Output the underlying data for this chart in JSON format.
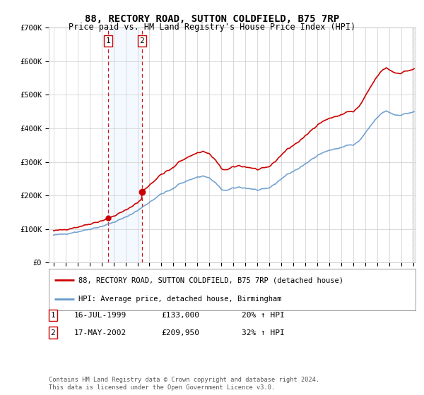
{
  "title": "88, RECTORY ROAD, SUTTON COLDFIELD, B75 7RP",
  "subtitle": "Price paid vs. HM Land Registry's House Price Index (HPI)",
  "legend_line1": "88, RECTORY ROAD, SUTTON COLDFIELD, B75 7RP (detached house)",
  "legend_line2": "HPI: Average price, detached house, Birmingham",
  "transaction1_date": "16-JUL-1999",
  "transaction1_price": "£133,000",
  "transaction1_hpi": "20% ↑ HPI",
  "transaction1_year": 1999.54,
  "transaction1_value": 133000,
  "transaction2_date": "17-MAY-2002",
  "transaction2_price": "£209,950",
  "transaction2_hpi": "32% ↑ HPI",
  "transaction2_year": 2002.37,
  "transaction2_value": 209950,
  "footer": "Contains HM Land Registry data © Crown copyright and database right 2024.\nThis data is licensed under the Open Government Licence v3.0.",
  "hpi_color": "#6699cc",
  "price_color": "#cc0000",
  "background_color": "#ffffff",
  "plot_bg_color": "#ffffff",
  "grid_color": "#cccccc",
  "shade_color": "#ddeeff",
  "ylim": [
    0,
    700000
  ],
  "yticks": [
    0,
    100000,
    200000,
    300000,
    400000,
    500000,
    600000,
    700000
  ],
  "ytick_labels": [
    "£0",
    "£100K",
    "£200K",
    "£300K",
    "£400K",
    "£500K",
    "£600K",
    "£700K"
  ]
}
